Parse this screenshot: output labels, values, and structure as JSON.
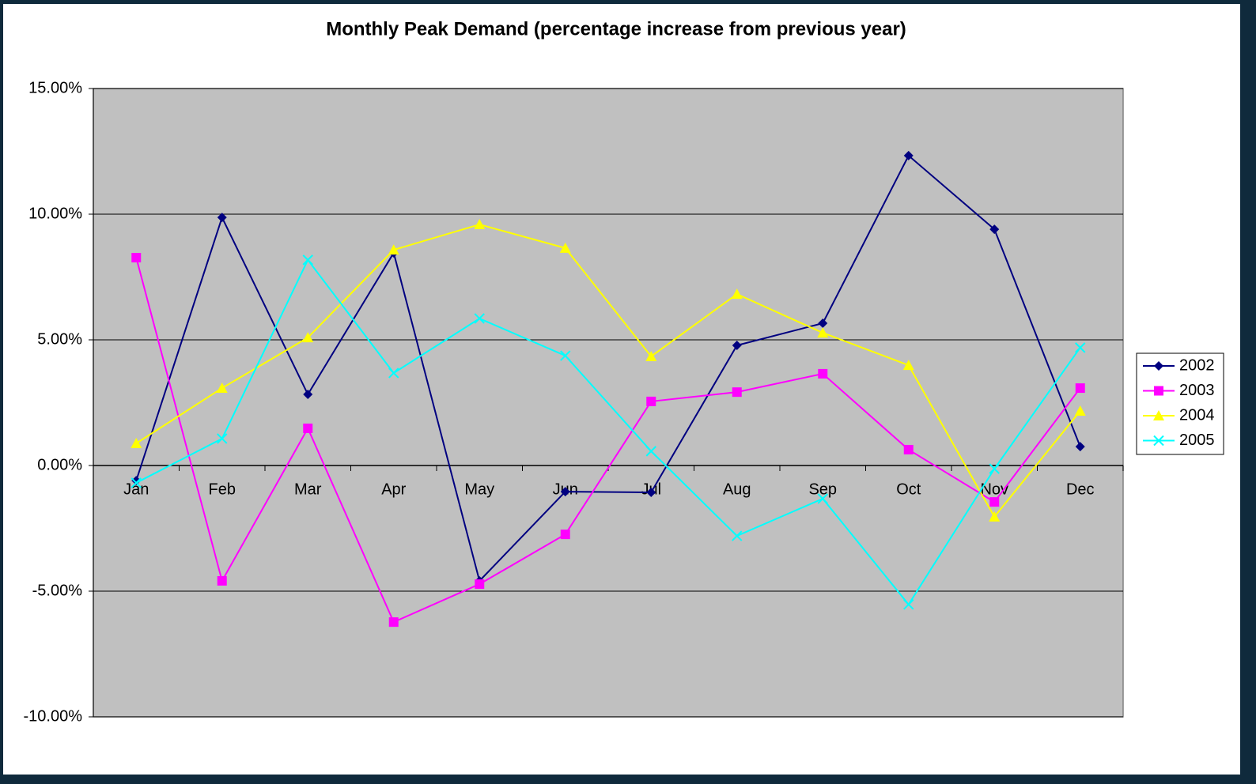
{
  "chart_data": {
    "type": "line",
    "title": "Monthly Peak Demand (percentage increase from previous year)",
    "categories": [
      "Jan",
      "Feb",
      "Mar",
      "Apr",
      "May",
      "Jun",
      "Jul",
      "Aug",
      "Sep",
      "Oct",
      "Nov",
      "Dec"
    ],
    "series": [
      {
        "name": "2002",
        "color": "#000080",
        "marker": "diamond",
        "values": [
          -0.6,
          9.87,
          2.83,
          8.46,
          -4.59,
          -1.04,
          -1.07,
          4.78,
          5.66,
          12.33,
          9.4,
          0.75
        ]
      },
      {
        "name": "2003",
        "color": "#ff00ff",
        "marker": "square",
        "values": [
          8.27,
          -4.59,
          1.48,
          -6.23,
          -4.72,
          -2.74,
          2.55,
          2.92,
          3.65,
          0.63,
          -1.45,
          3.08
        ]
      },
      {
        "name": "2004",
        "color": "#ffff00",
        "marker": "triangle",
        "values": [
          0.88,
          3.08,
          5.09,
          8.58,
          9.59,
          8.65,
          4.34,
          6.82,
          5.28,
          3.99,
          -2.04,
          2.17
        ]
      },
      {
        "name": "2005",
        "color": "#00ffff",
        "marker": "x",
        "values": [
          -0.69,
          1.07,
          8.18,
          3.68,
          5.85,
          4.37,
          0.57,
          -2.8,
          -1.32,
          -5.53,
          -0.13,
          4.69
        ]
      }
    ],
    "ylim": [
      -10,
      15
    ],
    "yticks": [
      {
        "value": -10,
        "label": "-10.00%"
      },
      {
        "value": -5,
        "label": "-5.00%"
      },
      {
        "value": 0,
        "label": "0.00%"
      },
      {
        "value": 5,
        "label": "5.00%"
      },
      {
        "value": 10,
        "label": "10.00%"
      },
      {
        "value": 15,
        "label": "15.00%"
      }
    ],
    "grid": true,
    "legend": "right"
  }
}
